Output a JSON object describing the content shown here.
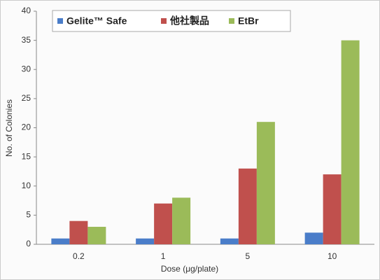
{
  "chart_data": {
    "type": "bar",
    "categories": [
      "0.2",
      "1",
      "5",
      "10"
    ],
    "series": [
      {
        "name": "Gelite™ Safe",
        "color": "#4a7dc9",
        "values": [
          1,
          1,
          1,
          2
        ]
      },
      {
        "name": "他社製品",
        "color": "#c0504d",
        "values": [
          4,
          7,
          13,
          12
        ]
      },
      {
        "name": "EtBr",
        "color": "#9bbb59",
        "values": [
          3,
          8,
          21,
          35
        ]
      }
    ],
    "x_label": "Dose (μg/plate)",
    "y_label": "No. of Colonies",
    "ylim": [
      0,
      40
    ],
    "yticks": [
      0,
      5,
      10,
      15,
      20,
      25,
      30,
      35,
      40
    ],
    "grid": false,
    "legend": "top"
  }
}
